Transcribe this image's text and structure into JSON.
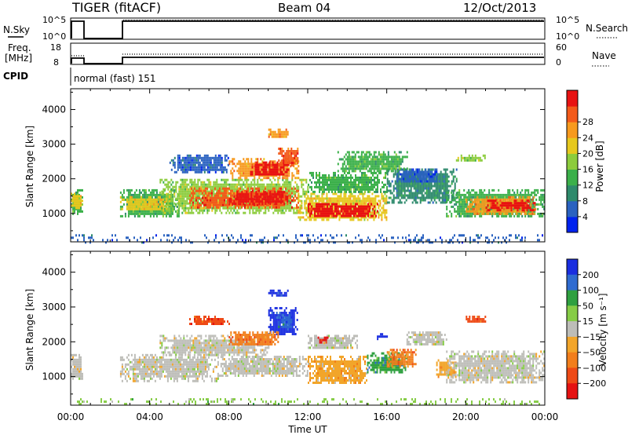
{
  "header": {
    "radar": "TIGER (fitACF)",
    "beam": "Beam 04",
    "date": "12/Oct/2013"
  },
  "status": {
    "nsky_label": "N.Sky",
    "nsearch_label": "N.Search",
    "freq_label_line1": "Freq.",
    "freq_label_line2": "[MHz]",
    "nave_label": "Nave",
    "cpid_label": "CPID",
    "cpid_value": "normal (fast) 151",
    "noise_ticks_left": [
      "10^5",
      "10^0"
    ],
    "noise_ticks_right": [
      "10^5",
      "10^0"
    ],
    "freq_ticks_left": [
      "18",
      "8"
    ],
    "nave_ticks_right": [
      "60",
      "0"
    ]
  },
  "chart_data": [
    {
      "type": "heatmap",
      "panel": "power",
      "ylabel": "Slant Range [km]",
      "ylim": [
        180,
        4600
      ],
      "y_ticks": [
        "1000",
        "2000",
        "3000",
        "4000"
      ],
      "x_ticks": [
        "00:00",
        "04:00",
        "08:00",
        "12:00",
        "16:00",
        "20:00",
        "00:00"
      ],
      "colorbar": {
        "label": "Power [dB]",
        "ticks": [
          "4",
          "8",
          "12",
          "16",
          "20",
          "24",
          "28"
        ],
        "colors": [
          "#0022ee",
          "#2a62c0",
          "#2e8a6c",
          "#3bb04a",
          "#8ccc3c",
          "#e6c81e",
          "#f79a1e",
          "#f35a1a",
          "#e81212"
        ]
      },
      "regions": [
        {
          "t": [
            0.0,
            0.6
          ],
          "r": [
            1000,
            1700
          ],
          "c": 3
        },
        {
          "t": [
            0.0,
            0.6
          ],
          "r": [
            1150,
            1600
          ],
          "c": 5
        },
        {
          "t": [
            2.5,
            5.5
          ],
          "r": [
            900,
            1700
          ],
          "c": 3
        },
        {
          "t": [
            2.5,
            5.0
          ],
          "r": [
            1100,
            1500
          ],
          "c": 5
        },
        {
          "t": [
            4.5,
            12.0
          ],
          "r": [
            1000,
            2000
          ],
          "c": 4
        },
        {
          "t": [
            6.0,
            11.5
          ],
          "r": [
            1150,
            1750
          ],
          "c": 7
        },
        {
          "t": [
            8.0,
            11.0
          ],
          "r": [
            1300,
            1650
          ],
          "c": 8
        },
        {
          "t": [
            8.0,
            11.5
          ],
          "r": [
            2000,
            2600
          ],
          "c": 6
        },
        {
          "t": [
            9.0,
            11.0
          ],
          "r": [
            2100,
            2500
          ],
          "c": 8
        },
        {
          "t": [
            10.5,
            11.5
          ],
          "r": [
            2400,
            2900
          ],
          "c": 7
        },
        {
          "t": [
            10.0,
            11.0
          ],
          "r": [
            3200,
            3450
          ],
          "c": 6
        },
        {
          "t": [
            11.5,
            16.0
          ],
          "r": [
            800,
            1600
          ],
          "c": 5
        },
        {
          "t": [
            12.0,
            15.5
          ],
          "r": [
            900,
            1300
          ],
          "c": 8
        },
        {
          "t": [
            12.0,
            16.0
          ],
          "r": [
            1600,
            2200
          ],
          "c": 3
        },
        {
          "t": [
            16.0,
            19.5
          ],
          "r": [
            1300,
            2300
          ],
          "c": 2
        },
        {
          "t": [
            16.5,
            18.5
          ],
          "r": [
            1900,
            2300
          ],
          "c": 1
        },
        {
          "t": [
            19.0,
            23.99
          ],
          "r": [
            900,
            1700
          ],
          "c": 3
        },
        {
          "t": [
            20.0,
            23.5
          ],
          "r": [
            1000,
            1500
          ],
          "c": 6
        },
        {
          "t": [
            21.0,
            23.5
          ],
          "r": [
            1100,
            1400
          ],
          "c": 8
        },
        {
          "t": [
            5.0,
            8.0
          ],
          "r": [
            2200,
            2700
          ],
          "c": 1
        },
        {
          "t": [
            13.5,
            17.0
          ],
          "r": [
            2200,
            2800
          ],
          "c": 3
        },
        {
          "t": [
            19.5,
            21.0
          ],
          "r": [
            2500,
            2700
          ],
          "c": 4
        },
        {
          "t": [
            0.0,
            23.99
          ],
          "r": [
            180,
            400
          ],
          "c": 1
        }
      ]
    },
    {
      "type": "heatmap",
      "panel": "velocity",
      "ylabel": "Slant Range [km]",
      "ylim": [
        180,
        4600
      ],
      "y_ticks": [
        "1000",
        "2000",
        "3000",
        "4000"
      ],
      "x_ticks": [
        "00:00",
        "04:00",
        "08:00",
        "12:00",
        "16:00",
        "20:00",
        "00:00"
      ],
      "xlabel": "Time UT",
      "colorbar": {
        "label": "Velocity [m s⁻¹]",
        "ticks": [
          "200",
          "100",
          "50",
          "15",
          "−15",
          "−50",
          "−100",
          "−200"
        ],
        "colors": [
          "#1a2ee0",
          "#2f6bd0",
          "#2fa040",
          "#86cc46",
          "#bdbdb8",
          "#f2a52a",
          "#f27e1c",
          "#ee4a16",
          "#e51212"
        ]
      },
      "regions": [
        {
          "t": [
            0.0,
            0.6
          ],
          "r": [
            950,
            1650
          ],
          "c": 4
        },
        {
          "t": [
            2.5,
            7.5
          ],
          "r": [
            900,
            1650
          ],
          "c": 4
        },
        {
          "t": [
            7.5,
            12.0
          ],
          "r": [
            1050,
            1600
          ],
          "c": 4
        },
        {
          "t": [
            4.5,
            10.0
          ],
          "r": [
            1600,
            2200
          ],
          "c": 4
        },
        {
          "t": [
            10.0,
            11.5
          ],
          "r": [
            2200,
            3000
          ],
          "c": 0
        },
        {
          "t": [
            10.5,
            11.2
          ],
          "r": [
            2400,
            2800
          ],
          "c": 1
        },
        {
          "t": [
            10.0,
            11.0
          ],
          "r": [
            3300,
            3500
          ],
          "c": 0
        },
        {
          "t": [
            8.0,
            10.5
          ],
          "r": [
            1900,
            2300
          ],
          "c": 6
        },
        {
          "t": [
            6.0,
            8.0
          ],
          "r": [
            2500,
            2750
          ],
          "c": 7
        },
        {
          "t": [
            12.0,
            15.0
          ],
          "r": [
            800,
            1600
          ],
          "c": 5
        },
        {
          "t": [
            12.0,
            14.5
          ],
          "r": [
            1800,
            2200
          ],
          "c": 4
        },
        {
          "t": [
            15.0,
            17.0
          ],
          "r": [
            1100,
            1700
          ],
          "c": 2
        },
        {
          "t": [
            16.0,
            17.5
          ],
          "r": [
            1300,
            1800
          ],
          "c": 6
        },
        {
          "t": [
            17.0,
            19.0
          ],
          "r": [
            1900,
            2300
          ],
          "c": 4
        },
        {
          "t": [
            18.5,
            19.5
          ],
          "r": [
            1000,
            1500
          ],
          "c": 5
        },
        {
          "t": [
            19.0,
            23.99
          ],
          "r": [
            850,
            1750
          ],
          "c": 4
        },
        {
          "t": [
            20.0,
            21.0
          ],
          "r": [
            2550,
            2750
          ],
          "c": 7
        },
        {
          "t": [
            15.5,
            16.0
          ],
          "r": [
            2100,
            2250
          ],
          "c": 0
        },
        {
          "t": [
            12.5,
            13.0
          ],
          "r": [
            2000,
            2150
          ],
          "c": 8
        },
        {
          "t": [
            0.0,
            23.99
          ],
          "r": [
            180,
            380
          ],
          "c": 3
        }
      ]
    }
  ]
}
